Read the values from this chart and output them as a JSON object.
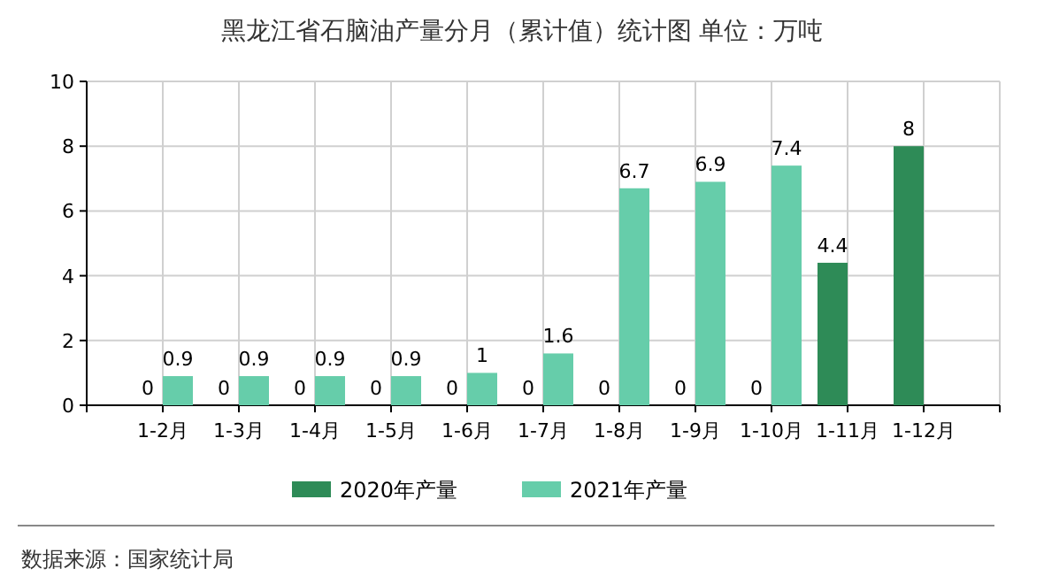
{
  "chart_data": {
    "type": "bar",
    "title": "黑龙江省石脑油产量分月（累计值）统计图 单位：万吨",
    "categories": [
      null,
      "1-2月",
      "1-3月",
      "1-4月",
      "1-5月",
      "1-6月",
      "1-7月",
      "1-8月",
      "1-9月",
      "1-10月",
      "1-11月",
      "1-12月"
    ],
    "series": [
      {
        "name": "2020年产量",
        "color": "#2e8b57",
        "values": [
          null,
          0,
          0,
          0,
          0,
          0,
          0,
          0,
          0,
          0,
          4.4,
          8
        ]
      },
      {
        "name": "2021年产量",
        "color": "#66cdaa",
        "values": [
          null,
          0.9,
          0.9,
          0.9,
          0.9,
          1,
          1.6,
          6.7,
          6.9,
          7.4,
          null,
          null
        ]
      }
    ],
    "ylim": [
      0,
      10
    ],
    "yticks": [
      0,
      2,
      4,
      6,
      8,
      10
    ],
    "grid": true,
    "legend": "bottom",
    "data_labels": true,
    "annotations": [
      "数据来源：国家统计局"
    ]
  }
}
